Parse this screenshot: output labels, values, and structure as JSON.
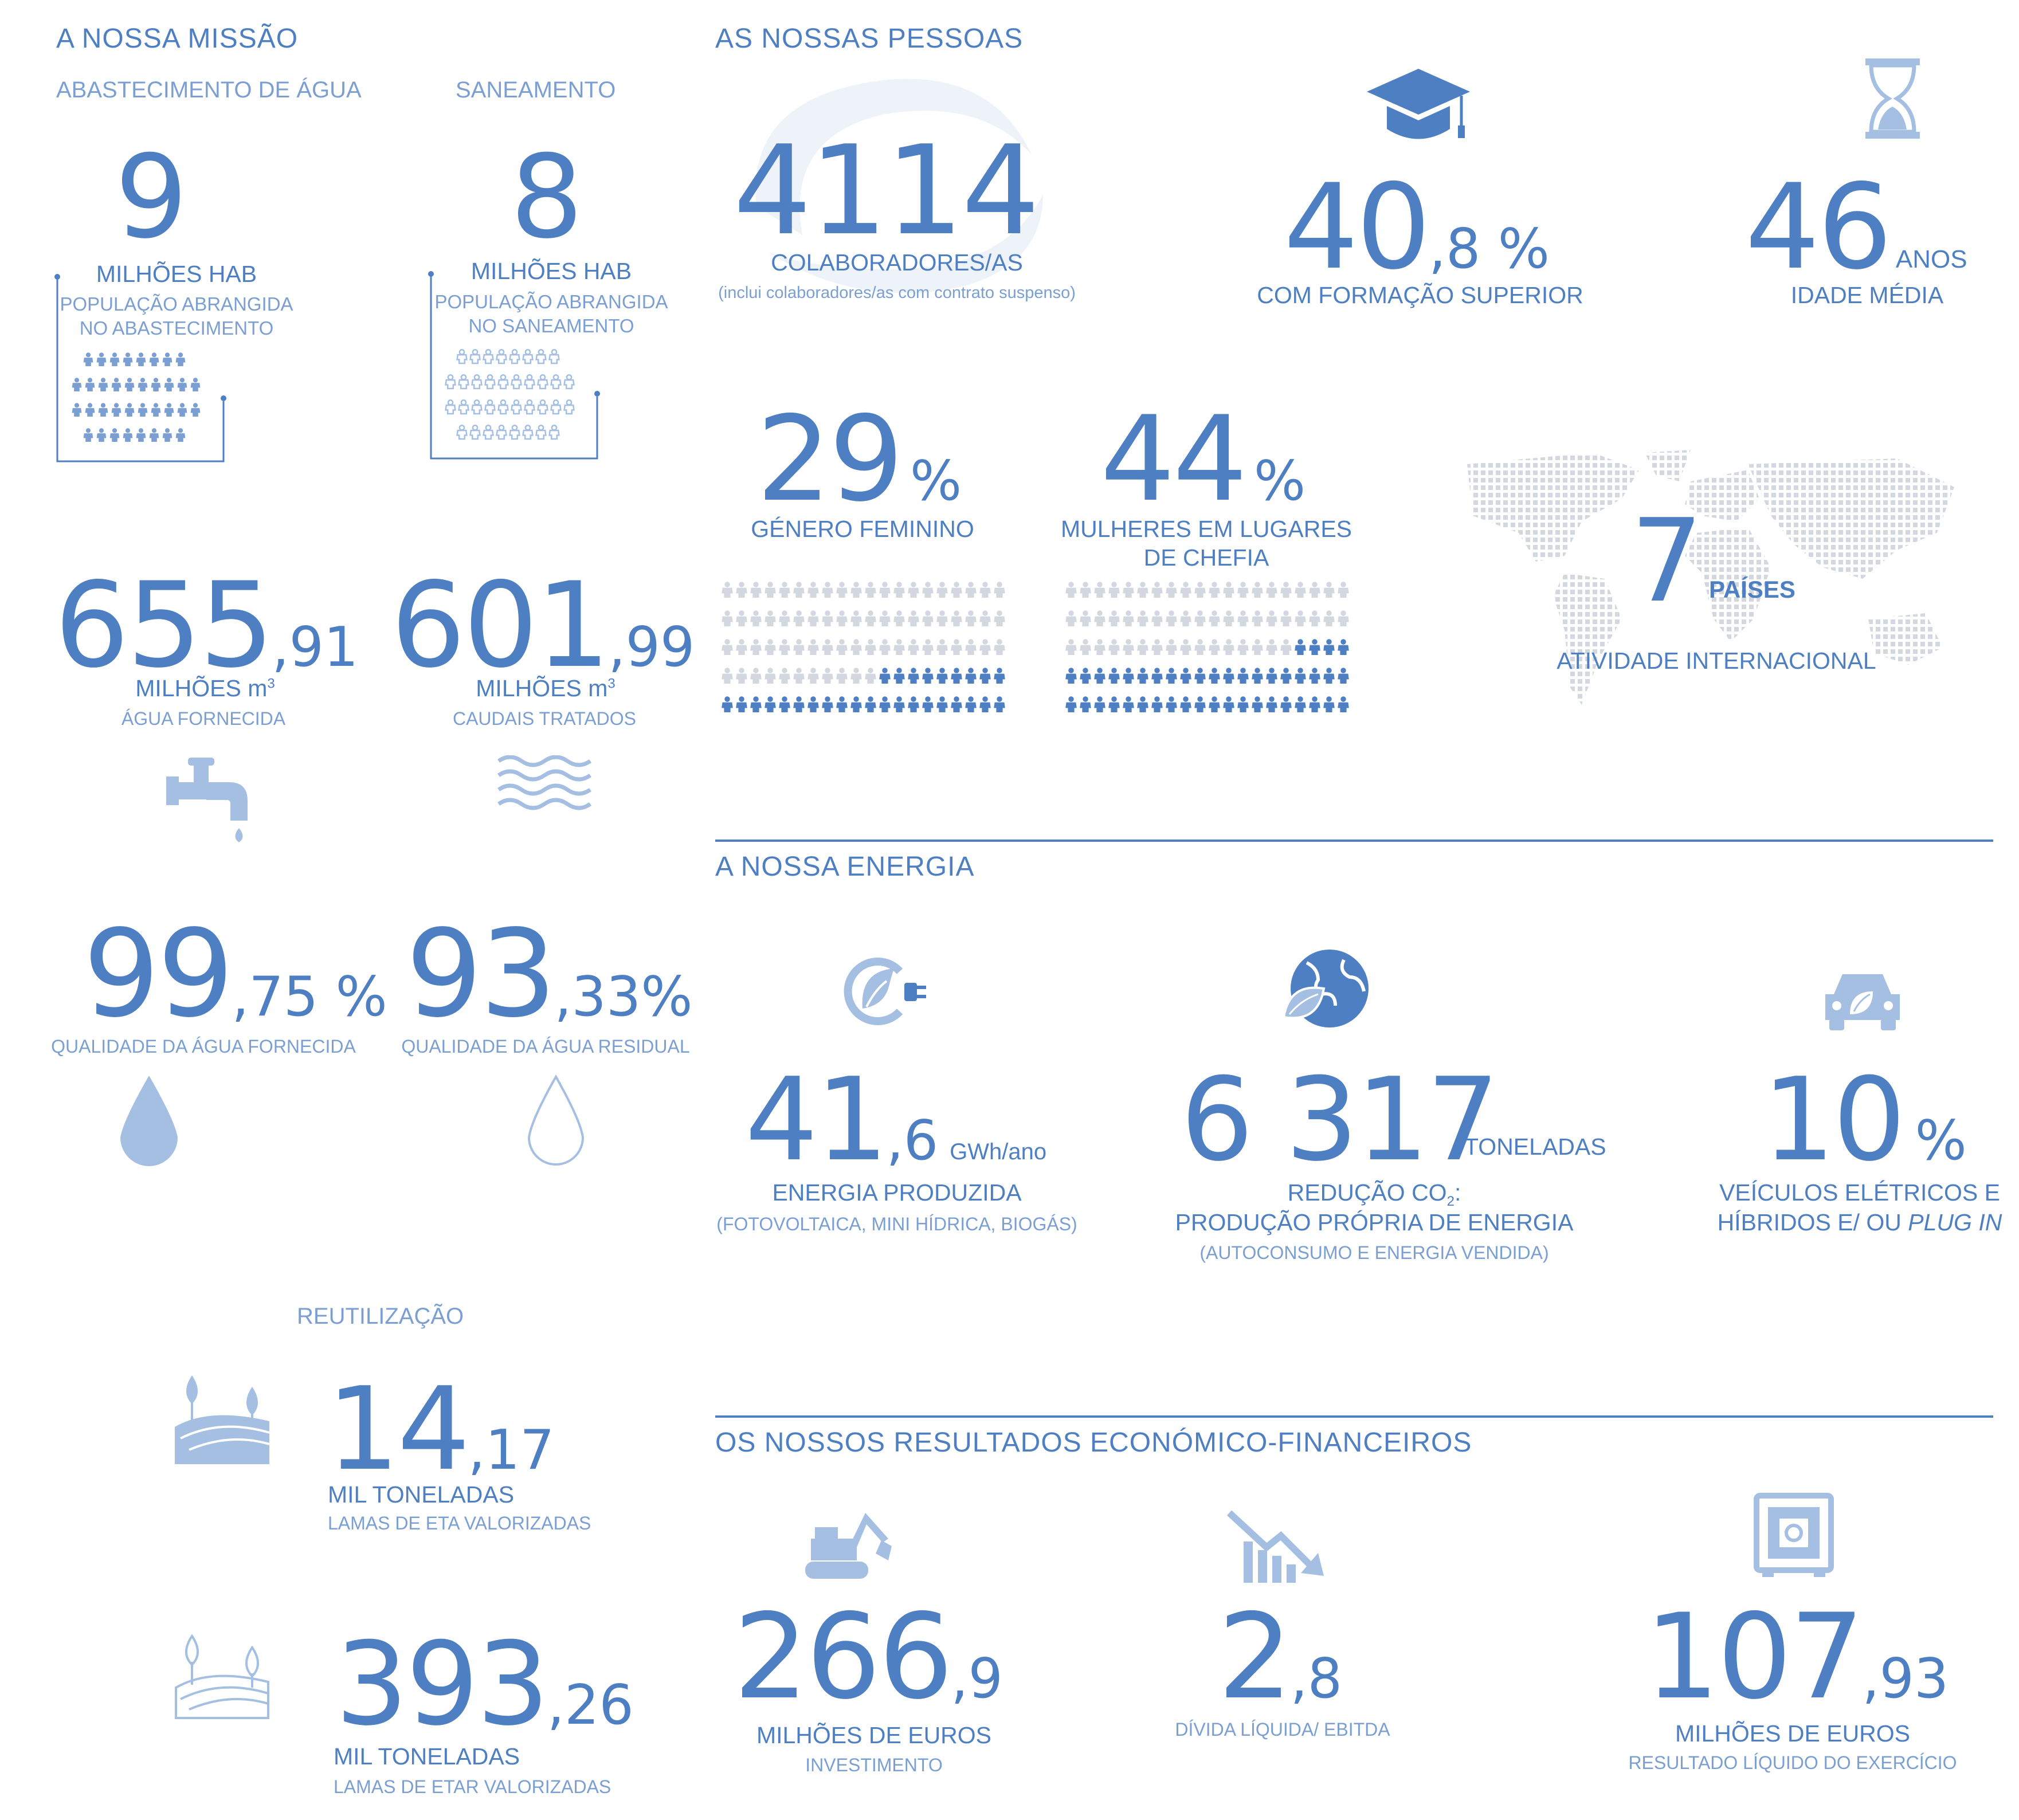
{
  "colors": {
    "primary": "#4d7fc2",
    "light": "#a5bfe3",
    "pale": "#d3d8e0"
  },
  "mission": {
    "title": "A NOSSA MISSÃO",
    "supply": {
      "heading": "ABASTECIMENTO DE ÁGUA",
      "value": "9",
      "unit": "MILHÕES HAB",
      "line1": "POPULAÇÃO ABRANGIDA",
      "line2": "NO ABASTECIMENTO"
    },
    "sanitation": {
      "heading": "SANEAMENTO",
      "value": "8",
      "unit": "MILHÕES HAB",
      "line1": "POPULAÇÃO ABRANGIDA",
      "line2": "NO SANEAMENTO"
    },
    "water_supplied": {
      "int": "655",
      "dec": ",91",
      "unit": "MILHÕES m",
      "sup": "3",
      "label": "ÁGUA FORNECIDA",
      "icon": "faucet-icon"
    },
    "flows_treated": {
      "int": "601",
      "dec": ",99",
      "unit": "MILHÕES m",
      "sup": "3",
      "label": "CAUDAIS TRATADOS",
      "icon": "waves-icon"
    },
    "quality_supplied": {
      "int": "99",
      "dec": ",75 %",
      "label": "QUALIDADE DA ÁGUA FORNECIDA",
      "icon": "drop-filled-icon"
    },
    "quality_waste": {
      "int": "93",
      "dec": ",33%",
      "label": "QUALIDADE DA ÁGUA RESIDUAL",
      "icon": "drop-outline-icon"
    },
    "reuse": {
      "heading": "REUTILIZAÇÃO",
      "eta": {
        "int": "14",
        "dec": ",17",
        "unit": "MIL TONELADAS",
        "label": "LAMAS DE ETA VALORIZADAS",
        "icon": "field-filled-icon"
      },
      "etar": {
        "int": "393",
        "dec": ",26",
        "unit": "MIL TONELADAS",
        "label": "LAMAS DE ETAR VALORIZADAS",
        "icon": "field-outline-icon"
      }
    }
  },
  "people": {
    "title": "AS NOSSAS PESSOAS",
    "employees": {
      "value": "4114",
      "label": "COLABORADORES/AS",
      "note": "(inclui colaboradores/as com contrato suspenso)"
    },
    "education": {
      "int": "40",
      "dec": ",8 %",
      "label": "COM FORMAÇÃO SUPERIOR",
      "icon": "graduation-cap-icon"
    },
    "age": {
      "value": "46",
      "unit": "ANOS",
      "label": "IDADE MÉDIA",
      "icon": "hourglass-icon"
    },
    "female": {
      "value": "29",
      "unit": "%",
      "label": "GÉNERO FEMININO",
      "share": 0.29
    },
    "women_lead": {
      "value": "44",
      "unit": "%",
      "label1": "MULHERES EM LUGARES",
      "label2": "DE CHEFIA",
      "share": 0.44
    },
    "countries": {
      "value": "7",
      "unit": "PAÍSES",
      "label": "ATIVIDADE INTERNACIONAL",
      "icon": "world-map-icon"
    }
  },
  "energy": {
    "title": "A NOSSA ENERGIA",
    "produced": {
      "int": "41",
      "dec": ",6",
      "unit": "GWh/ano",
      "label": "ENERGIA PRODUZIDA",
      "note": "(FOTOVOLTAICA, MINI HÍDRICA, BIOGÁS)",
      "icon": "leaf-plug-icon"
    },
    "co2": {
      "value": "6 317",
      "unit": "TONELADAS",
      "label1a": "REDUÇÃO CO",
      "label1sub": "2",
      "label1b": ":",
      "label2": "PRODUÇÃO PRÓPRIA DE ENERGIA",
      "note": "(AUTOCONSUMO E ENERGIA VENDIDA)",
      "icon": "globe-leaf-icon"
    },
    "vehicles": {
      "value": "10",
      "unit": "%",
      "label1": "VEÍCULOS ELÉTRICOS E",
      "label2a": "HÍBRIDOS E/ OU ",
      "label2b": "PLUG IN",
      "icon": "eco-car-icon"
    }
  },
  "finance": {
    "title": "OS NOSSOS RESULTADOS ECONÓMICO-FINANCEIROS",
    "investment": {
      "int": "266",
      "dec": ",9",
      "unit": "MILHÕES DE EUROS",
      "label": "INVESTIMENTO",
      "icon": "excavator-icon"
    },
    "debt": {
      "int": "2",
      "dec": ",8",
      "label": "DÍVIDA LÍQUIDA/ EBITDA",
      "icon": "declining-chart-icon"
    },
    "net_income": {
      "int": "107",
      "dec": ",93",
      "unit": "MILHÕES DE EUROS",
      "label": "RESULTADO LÍQUIDO DO EXERCÍCIO",
      "icon": "safe-icon"
    }
  }
}
